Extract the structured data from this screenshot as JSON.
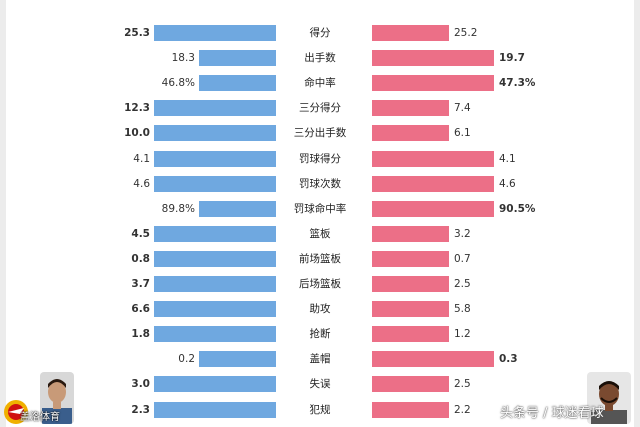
{
  "chart_data": {
    "type": "bar",
    "colors": {
      "left": "#6fa8e0",
      "right": "#ec6f87"
    },
    "categories": [
      "得分",
      "出手数",
      "命中率",
      "三分得分",
      "三分出手数",
      "罚球得分",
      "罚球次数",
      "罚球命中率",
      "篮板",
      "前场篮板",
      "后场篮板",
      "助攻",
      "抢断",
      "盖帽",
      "失误",
      "犯规"
    ],
    "series": [
      {
        "labels": [
          "25.3",
          "18.3",
          "46.8%",
          "12.3",
          "10.0",
          "4.1",
          "4.6",
          "89.8%",
          "4.5",
          "0.8",
          "3.7",
          "6.6",
          "1.8",
          "0.2",
          "3.0",
          "2.3"
        ],
        "values": [
          25.3,
          18.3,
          46.8,
          12.3,
          10.0,
          4.1,
          4.6,
          89.8,
          4.5,
          0.8,
          3.7,
          6.6,
          1.8,
          0.2,
          3.0,
          2.3
        ],
        "bold": [
          true,
          false,
          false,
          true,
          true,
          false,
          false,
          false,
          true,
          true,
          true,
          true,
          true,
          false,
          true,
          true
        ]
      },
      {
        "labels": [
          "25.2",
          "19.7",
          "47.3%",
          "7.4",
          "6.1",
          "4.1",
          "4.6",
          "90.5%",
          "3.2",
          "0.7",
          "2.5",
          "5.8",
          "1.2",
          "0.3",
          "2.5",
          "2.2"
        ],
        "values": [
          25.2,
          19.7,
          47.3,
          7.4,
          6.1,
          4.1,
          4.6,
          90.5,
          3.2,
          0.7,
          2.5,
          5.8,
          1.2,
          0.3,
          2.5,
          2.2
        ],
        "bold": [
          false,
          true,
          true,
          false,
          false,
          false,
          false,
          true,
          false,
          false,
          false,
          false,
          false,
          true,
          false,
          false
        ]
      }
    ]
  },
  "watermarks": {
    "left": "盖洛体育",
    "right": "头条号 / 球迷看球"
  }
}
